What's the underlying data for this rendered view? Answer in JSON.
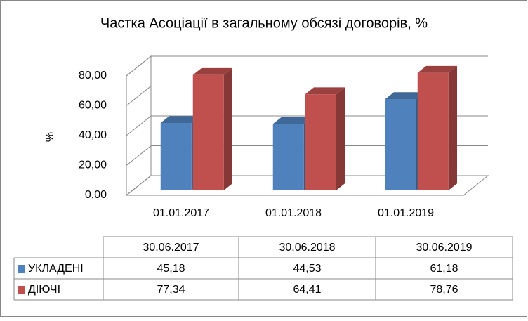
{
  "chart_data": {
    "type": "bar3d",
    "title": "Частка Асоціації в загальному обсязі договорів, %",
    "y_label": "%",
    "categories": [
      "01.01.2017",
      "01.01.2018",
      "01.01.2019"
    ],
    "table_columns": [
      "30.06.2017",
      "30.06.2018",
      "30.06.2019"
    ],
    "series": [
      {
        "name": "УКЛАДЕНІ",
        "color": "#4f81bd",
        "values": [
          45.18,
          44.53,
          61.18
        ],
        "value_labels": [
          "45,18",
          "44,53",
          "61,18"
        ]
      },
      {
        "name": "ДІЮЧІ",
        "color": "#c0504d",
        "values": [
          77.34,
          64.41,
          78.76
        ],
        "value_labels": [
          "77,34",
          "64,41",
          "78,76"
        ]
      }
    ],
    "ylim": [
      0,
      80
    ],
    "yticks": [
      {
        "value": 0,
        "label": "0,00"
      },
      {
        "value": 20,
        "label": "20,00"
      },
      {
        "value": 40,
        "label": "40,00"
      },
      {
        "value": 60,
        "label": "60,00"
      },
      {
        "value": 80,
        "label": "80,00"
      }
    ],
    "grid": true
  }
}
